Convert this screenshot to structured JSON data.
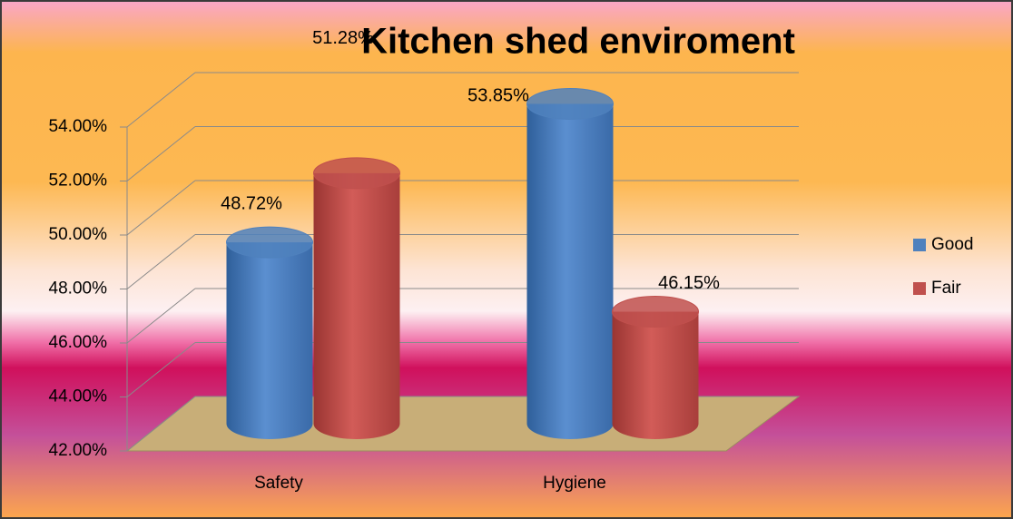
{
  "chart_data": {
    "type": "bar3d",
    "title": "Kitchen shed enviroment",
    "categories": [
      "Safety",
      "Hygiene"
    ],
    "series": [
      {
        "name": "Good",
        "color": "#4f81bd",
        "values": [
          48.72,
          53.85
        ],
        "value_labels": [
          "48.72%",
          "53.85%"
        ]
      },
      {
        "name": "Fair",
        "color": "#c0504d",
        "values": [
          51.28,
          46.15
        ],
        "value_labels": [
          "51.28%",
          "46.15%"
        ]
      }
    ],
    "ylim": [
      42,
      54
    ],
    "yticks": [
      {
        "value": 42,
        "label": "42.00%"
      },
      {
        "value": 44,
        "label": "44.00%"
      },
      {
        "value": 46,
        "label": "46.00%"
      },
      {
        "value": 48,
        "label": "48.00%"
      },
      {
        "value": 50,
        "label": "50.00%"
      },
      {
        "value": 52,
        "label": "52.00%"
      },
      {
        "value": 54,
        "label": "54.00%"
      }
    ],
    "grid": true,
    "legend": "right"
  }
}
